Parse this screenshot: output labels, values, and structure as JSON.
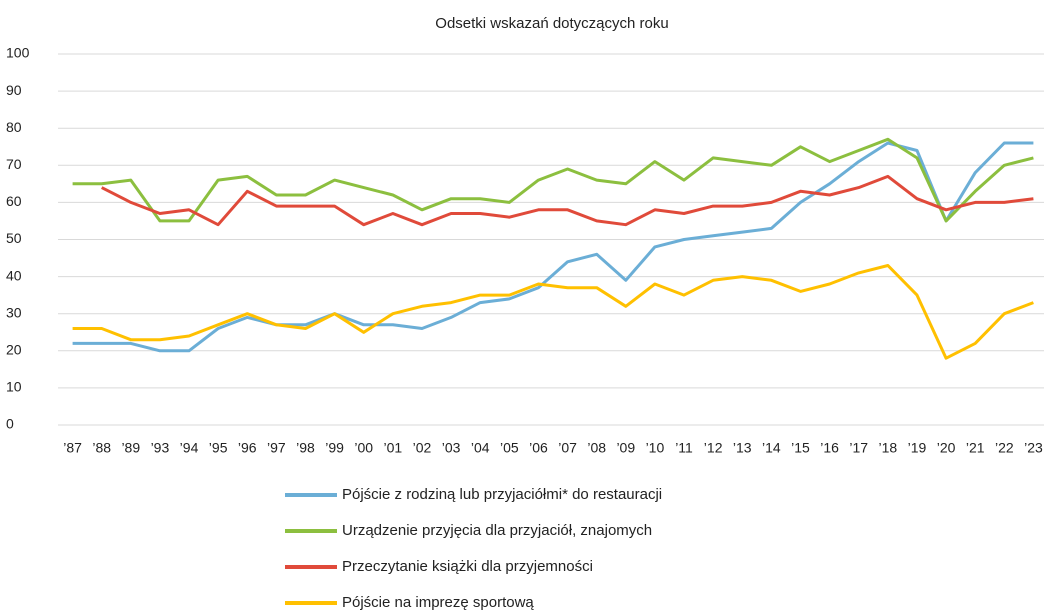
{
  "chart_data": {
    "type": "line",
    "title": "Odsetki wskazań dotyczących roku",
    "categories": [
      "’87",
      "’88",
      "’89",
      "’93",
      "’94",
      "’95",
      "’96",
      "’97",
      "’98",
      "’99",
      "’00",
      "’01",
      "’02",
      "’03",
      "’04",
      "’05",
      "’06",
      "’07",
      "’08",
      "’09",
      "’10",
      "’11",
      "’12",
      "’13",
      "’14",
      "’15",
      "’16",
      "’17",
      "’18",
      "’19",
      "’20",
      "’21",
      "’22",
      "’23"
    ],
    "series": [
      {
        "name": "Pójście z rodziną lub przyjaciółmi* do restauracji",
        "color": "#6baed6",
        "values": [
          22,
          22,
          22,
          20,
          20,
          26,
          29,
          27,
          27,
          30,
          27,
          27,
          26,
          29,
          33,
          34,
          37,
          44,
          46,
          39,
          48,
          50,
          51,
          52,
          53,
          60,
          65,
          71,
          76,
          74,
          55,
          68,
          76,
          76
        ]
      },
      {
        "name": "Urządzenie przyjęcia dla przyjaciół, znajomych",
        "color": "#8cbf3f",
        "values": [
          65,
          65,
          66,
          55,
          55,
          66,
          67,
          62,
          62,
          66,
          64,
          62,
          58,
          61,
          61,
          60,
          66,
          69,
          66,
          65,
          71,
          66,
          72,
          71,
          70,
          75,
          71,
          74,
          77,
          72,
          55,
          63,
          70,
          72
        ]
      },
      {
        "name": "Przeczytanie książki dla przyjemności",
        "color": "#e04a3a",
        "values": [
          null,
          64,
          60,
          57,
          58,
          54,
          63,
          59,
          59,
          59,
          54,
          57,
          54,
          57,
          57,
          56,
          58,
          58,
          55,
          54,
          58,
          57,
          59,
          59,
          60,
          63,
          62,
          64,
          67,
          61,
          58,
          60,
          60,
          61
        ]
      },
      {
        "name": "Pójście na imprezę sportową",
        "color": "#ffc000",
        "values": [
          26,
          26,
          23,
          23,
          24,
          27,
          30,
          27,
          26,
          30,
          25,
          30,
          32,
          33,
          35,
          35,
          38,
          37,
          37,
          32,
          38,
          35,
          39,
          40,
          39,
          36,
          38,
          41,
          43,
          35,
          18,
          22,
          30,
          33
        ]
      }
    ],
    "ylim": [
      0,
      100
    ],
    "yticks": [
      0,
      10,
      20,
      30,
      40,
      50,
      60,
      70,
      80,
      90,
      100
    ],
    "grid": true,
    "legend": "bottom"
  }
}
